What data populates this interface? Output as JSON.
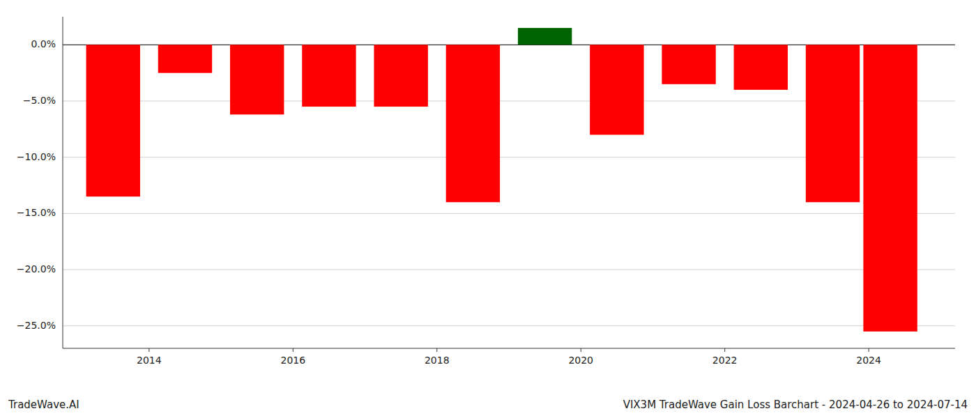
{
  "chart_data": {
    "type": "bar",
    "title": "VIX3M TradeWave Gain Loss Barchart - 2024-04-26 to 2024-07-14",
    "annotations": [
      "TradeWave.AI"
    ],
    "x": [
      2013.5,
      2014.5,
      2015.5,
      2016.5,
      2017.5,
      2018.5,
      2019.5,
      2020.5,
      2021.5,
      2022.5,
      2023.5,
      2024.3
    ],
    "values": [
      -13.5,
      -2.5,
      -6.2,
      -5.5,
      -5.5,
      -14.0,
      1.5,
      -8.0,
      -3.5,
      -4.0,
      -14.0,
      -25.5
    ],
    "colors": [
      "#ff0000",
      "#ff0000",
      "#ff0000",
      "#ff0000",
      "#ff0000",
      "#ff0000",
      "#006400",
      "#ff0000",
      "#ff0000",
      "#ff0000",
      "#ff0000",
      "#ff0000"
    ],
    "xlim": [
      2012.8,
      2025.2
    ],
    "xticks": [
      2014,
      2016,
      2018,
      2020,
      2022,
      2024
    ],
    "ylim": [
      -27,
      2.5
    ],
    "yticks": [
      {
        "value": 0.0,
        "label": "0.0%"
      },
      {
        "value": -5.0,
        "label": "−5.0%"
      },
      {
        "value": -10.0,
        "label": "−10.0%"
      },
      {
        "value": -15.0,
        "label": "−15.0%"
      },
      {
        "value": -20.0,
        "label": "−20.0%"
      },
      {
        "value": -25.0,
        "label": "−25.0%"
      }
    ],
    "grid": true
  }
}
